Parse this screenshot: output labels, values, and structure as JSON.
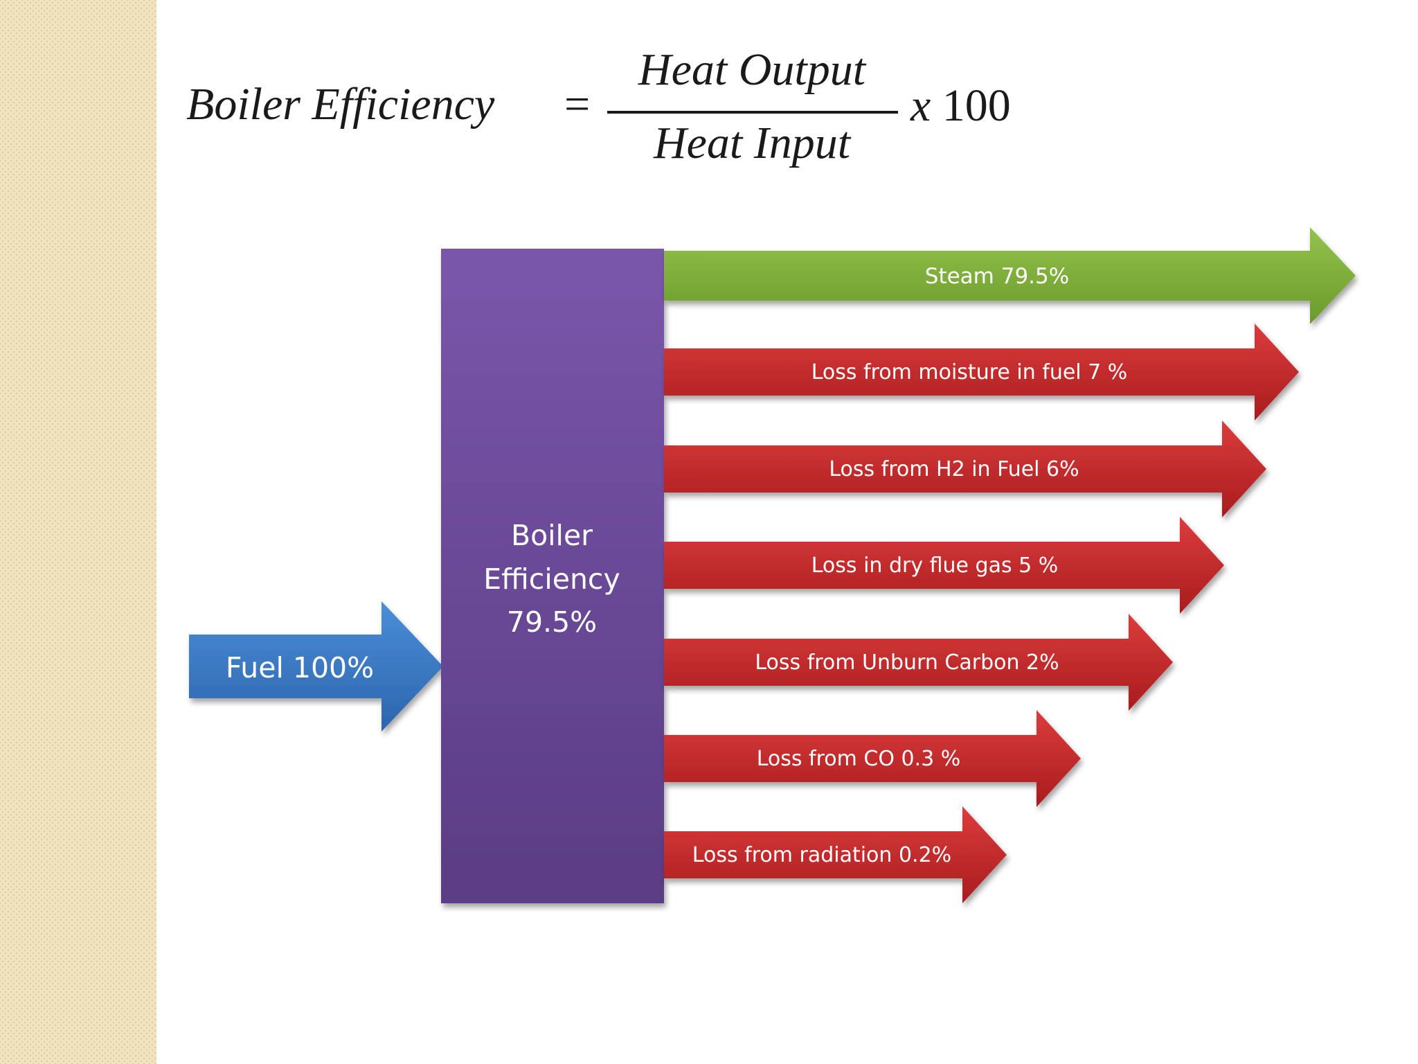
{
  "formula": {
    "lhs": "Boiler Efficiency",
    "equals": "=",
    "numerator": "Heat Output",
    "denominator": "Heat Input",
    "multiplier_sign": "x",
    "multiplier_value": "100"
  },
  "input": {
    "label": "Fuel 100%",
    "percent": 100
  },
  "boiler": {
    "line1": "Boiler",
    "line2": "Efficiency",
    "line3": "79.5%"
  },
  "outputs": [
    {
      "label": "Steam 79.5%",
      "percent": 79.5,
      "kind": "useful"
    },
    {
      "label": "Loss from moisture in fuel 7  %",
      "percent": 7,
      "kind": "loss"
    },
    {
      "label": "Loss from H2 in Fuel 6%",
      "percent": 6,
      "kind": "loss"
    },
    {
      "label": "Loss in dry flue gas 5 %",
      "percent": 5,
      "kind": "loss"
    },
    {
      "label": "Loss from Unburn Carbon 2%",
      "percent": 2,
      "kind": "loss"
    },
    {
      "label": "Loss from CO 0.3 %",
      "percent": 0.3,
      "kind": "loss"
    },
    {
      "label": "Loss from radiation 0.2%",
      "percent": 0.2,
      "kind": "loss"
    }
  ],
  "colors": {
    "background": "#ffffff",
    "side_strip": "#f1e4c2",
    "fuel_arrow": "#3a78c0",
    "boiler_box": "#6b4a96",
    "steam_arrow": "#7fb03a",
    "loss_arrow": "#c6282a",
    "label_text": "#ffffff"
  }
}
